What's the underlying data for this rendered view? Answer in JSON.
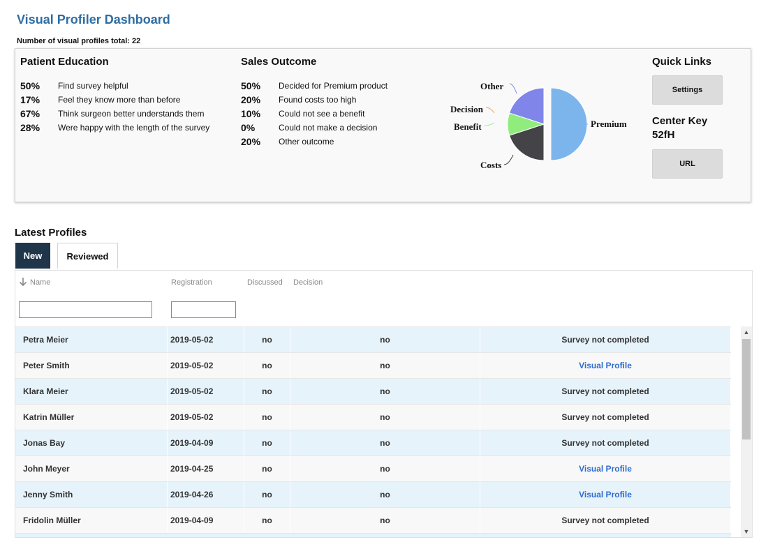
{
  "title": "Visual Profiler Dashboard",
  "total_label": "Number of visual profiles total: 22",
  "patient_education": {
    "title": "Patient Education",
    "items": [
      {
        "pct": "50%",
        "text": "Find survey helpful"
      },
      {
        "pct": "17%",
        "text": "Feel they know more than before"
      },
      {
        "pct": "67%",
        "text": "Think surgeon better understands them"
      },
      {
        "pct": "28%",
        "text": "Were happy with the length of the survey"
      }
    ]
  },
  "sales_outcome": {
    "title": "Sales Outcome",
    "items": [
      {
        "pct": "50%",
        "text": "Decided for Premium product"
      },
      {
        "pct": "20%",
        "text": "Found costs too high"
      },
      {
        "pct": "10%",
        "text": "Could not see a benefit"
      },
      {
        "pct": "0%",
        "text": "Could not make a decision"
      },
      {
        "pct": "20%",
        "text": "Other outcome"
      }
    ]
  },
  "chart_data": {
    "type": "pie",
    "slices": [
      {
        "label": "Premium",
        "value": 50,
        "color": "#7cb5ec"
      },
      {
        "label": "Costs",
        "value": 20,
        "color": "#434348"
      },
      {
        "label": "Benefit",
        "value": 10,
        "color": "#90ed7d"
      },
      {
        "label": "Decision",
        "value": 0,
        "color": "#f7a35c"
      },
      {
        "label": "Other",
        "value": 20,
        "color": "#8085e9"
      }
    ]
  },
  "quick_links": {
    "title": "Quick Links",
    "settings_label": "Settings",
    "center_key_label": "Center Key",
    "center_key_value": "52fH",
    "url_label": "URL"
  },
  "latest": {
    "title": "Latest Profiles",
    "tabs": [
      "New",
      "Reviewed"
    ],
    "sort_icon": "arrow-down-icon",
    "columns": [
      "Name",
      "Registration",
      "Discussed",
      "Decision"
    ],
    "rows": [
      {
        "name": "Petra Meier",
        "registration": "2019-05-02",
        "discussed": "no",
        "decision": "no",
        "action": "Survey not completed",
        "is_link": false
      },
      {
        "name": "Peter Smith",
        "registration": "2019-05-02",
        "discussed": "no",
        "decision": "no",
        "action": "Visual Profile",
        "is_link": true
      },
      {
        "name": "Klara Meier",
        "registration": "2019-05-02",
        "discussed": "no",
        "decision": "no",
        "action": "Survey not completed",
        "is_link": false
      },
      {
        "name": "Katrin Müller",
        "registration": "2019-05-02",
        "discussed": "no",
        "decision": "no",
        "action": "Survey not completed",
        "is_link": false
      },
      {
        "name": "Jonas Bay",
        "registration": "2019-04-09",
        "discussed": "no",
        "decision": "no",
        "action": "Survey not completed",
        "is_link": false
      },
      {
        "name": "John Meyer",
        "registration": "2019-04-25",
        "discussed": "no",
        "decision": "no",
        "action": "Visual Profile",
        "is_link": true
      },
      {
        "name": "Jenny Smith",
        "registration": "2019-04-26",
        "discussed": "no",
        "decision": "no",
        "action": "Visual Profile",
        "is_link": true
      },
      {
        "name": "Fridolin Müller",
        "registration": "2019-04-09",
        "discussed": "no",
        "decision": "no",
        "action": "Survey not completed",
        "is_link": false
      }
    ]
  },
  "colors": {
    "title": "#2e6da4",
    "tab_active_bg": "#1f3549",
    "row_alt_bg": "#e6f3fb",
    "link": "#2e6ccf"
  }
}
